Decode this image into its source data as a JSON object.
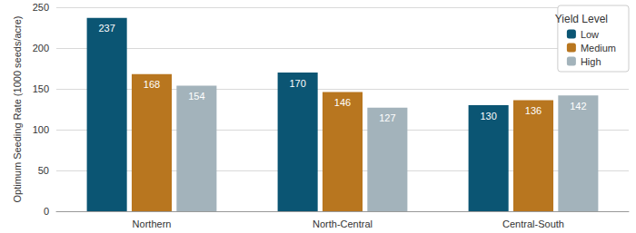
{
  "chart_data": {
    "type": "bar",
    "y_label": "Optimum Seeding Rate (1000 seeds/acre)",
    "categories": [
      "Northern",
      "North-Central",
      "Central-South"
    ],
    "series": [
      {
        "name": "Low",
        "color": "#0b5573",
        "values": [
          237,
          170,
          130
        ]
      },
      {
        "name": "Medium",
        "color": "#b8761f",
        "values": [
          168,
          146,
          136
        ]
      },
      {
        "name": "High",
        "color": "#a3b3bb",
        "values": [
          154,
          127,
          142
        ]
      }
    ],
    "legend_title": "Yield Level",
    "legend": "upper right",
    "ylim": [
      0,
      250
    ],
    "yticks": [
      0,
      50,
      100,
      150,
      200,
      250
    ],
    "grid": true,
    "data_labels": true
  }
}
